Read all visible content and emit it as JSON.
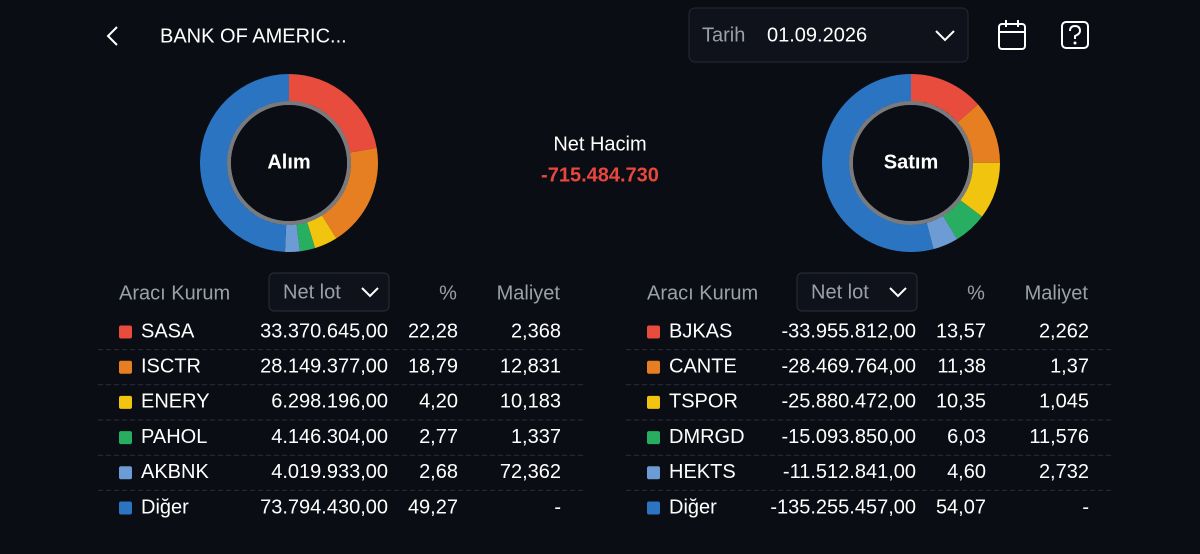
{
  "header": {
    "title": "BANK OF AMERIC...",
    "date_label": "Tarih",
    "date": "01.09.2026"
  },
  "net_volume": {
    "label": "Net Hacim",
    "value": "-715.484.730"
  },
  "tables": [
    {
      "label": "Alım",
      "columns": [
        "Aracı Kurum",
        "Net lot",
        "%",
        "Maliyet"
      ],
      "rows": [
        {
          "name": "SASA",
          "color": "#e74c3c",
          "net_lot": "33.370.645,00",
          "pct": {
            "value": 22.28,
            "label": "22,28"
          },
          "cost": "2,368"
        },
        {
          "name": "ISCTR",
          "color": "#e67e22",
          "net_lot": "28.149.377,00",
          "pct": {
            "value": 18.79,
            "label": "18,79"
          },
          "cost": "12,831"
        },
        {
          "name": "ENERY",
          "color": "#f1c40f",
          "net_lot": "6.298.196,00",
          "pct": {
            "value": 4.2,
            "label": "4,20"
          },
          "cost": "10,183"
        },
        {
          "name": "PAHOL",
          "color": "#27ae60",
          "net_lot": "4.146.304,00",
          "pct": {
            "value": 2.77,
            "label": "2,77"
          },
          "cost": "1,337"
        },
        {
          "name": "AKBNK",
          "color": "#6d9bd3",
          "net_lot": "4.019.933,00",
          "pct": {
            "value": 2.68,
            "label": "2,68"
          },
          "cost": "72,362"
        },
        {
          "name": "Diğer",
          "color": "#2b74c2",
          "net_lot": "73.794.430,00",
          "pct": {
            "value": 49.27,
            "label": "49,27"
          },
          "cost": "-"
        }
      ]
    },
    {
      "label": "Satım",
      "columns": [
        "Aracı Kurum",
        "Net lot",
        "%",
        "Maliyet"
      ],
      "rows": [
        {
          "name": "BJKAS",
          "color": "#e74c3c",
          "net_lot": "-33.955.812,00",
          "pct": {
            "value": 13.57,
            "label": "13,57"
          },
          "cost": "2,262"
        },
        {
          "name": "CANTE",
          "color": "#e67e22",
          "net_lot": "-28.469.764,00",
          "pct": {
            "value": 11.38,
            "label": "11,38"
          },
          "cost": "1,37"
        },
        {
          "name": "TSPOR",
          "color": "#f1c40f",
          "net_lot": "-25.880.472,00",
          "pct": {
            "value": 10.35,
            "label": "10,35"
          },
          "cost": "1,045"
        },
        {
          "name": "DMRGD",
          "color": "#27ae60",
          "net_lot": "-15.093.850,00",
          "pct": {
            "value": 6.03,
            "label": "6,03"
          },
          "cost": "11,576"
        },
        {
          "name": "HEKTS",
          "color": "#6d9bd3",
          "net_lot": "-11.512.841,00",
          "pct": {
            "value": 4.6,
            "label": "4,60"
          },
          "cost": "2,732"
        },
        {
          "name": "Diğer",
          "color": "#2b74c2",
          "net_lot": "-135.255.457,00",
          "pct": {
            "value": 54.07,
            "label": "54,07"
          },
          "cost": "-"
        }
      ]
    }
  ]
}
